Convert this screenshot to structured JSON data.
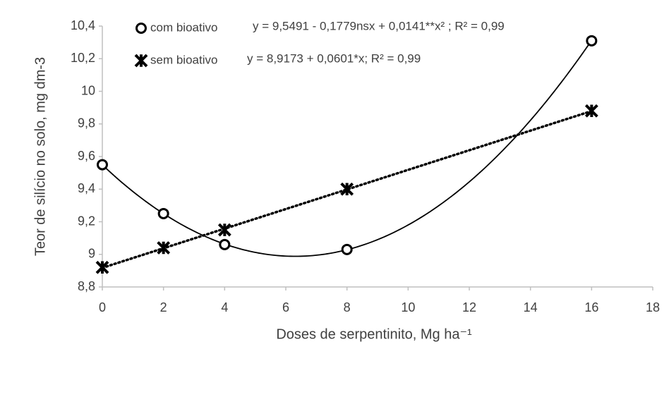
{
  "chart_data": {
    "type": "scatter",
    "x_label": "Doses de serpentinito, Mg ha⁻¹",
    "y_label": "Teor de silício no solo, mg dm-3",
    "xlim": [
      0,
      18
    ],
    "xticks": [
      0,
      2,
      4,
      6,
      8,
      10,
      12,
      14,
      16,
      18
    ],
    "ylim": [
      8.8,
      10.4
    ],
    "yticks": [
      {
        "value": 8.8,
        "label": "8,8"
      },
      9,
      {
        "value": 9.2,
        "label": "9,2"
      },
      {
        "value": 9.4,
        "label": "9,4"
      },
      {
        "value": 9.6,
        "label": "9,6"
      },
      {
        "value": 9.8,
        "label": "9,8"
      },
      10,
      {
        "value": 10.2,
        "label": "10,2"
      },
      {
        "value": 10.4,
        "label": "10,4"
      }
    ],
    "x": [
      0,
      2,
      4,
      8,
      16
    ],
    "series": [
      {
        "name": "com bioativo",
        "marker": "circle",
        "color": "#000000",
        "values": [
          9.55,
          9.25,
          9.06,
          9.03,
          10.31
        ],
        "trend": {
          "coefficients": [
            9.5491,
            -0.1779,
            0.0141
          ],
          "style": "solid",
          "equation": "y = 9,5491 - 0,1779nsx + 0,0141**x² ; R² = 0,99"
        }
      },
      {
        "name": "sem bioativo",
        "marker": "star",
        "color": "#000000",
        "values": [
          8.92,
          9.04,
          9.15,
          9.4,
          9.88
        ],
        "trend": {
          "coefficients": [
            8.9173,
            0.0601
          ],
          "style": "dotted",
          "equation": "y = 8,9173 + 0,0601*x; R² = 0,99"
        }
      }
    ]
  }
}
